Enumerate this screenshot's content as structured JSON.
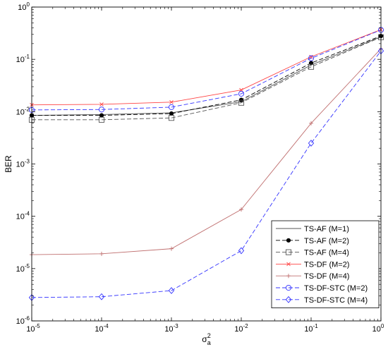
{
  "chart_data": {
    "type": "line",
    "xscale": "log",
    "yscale": "log",
    "xlim": [
      1e-05,
      1
    ],
    "ylim": [
      1e-06,
      1
    ],
    "x_ticks": [
      1e-05,
      0.0001,
      0.001,
      0.01,
      0.1,
      1
    ],
    "x_tick_labels": [
      {
        "base": "10",
        "exp": "-5"
      },
      {
        "base": "10",
        "exp": "-4"
      },
      {
        "base": "10",
        "exp": "-3"
      },
      {
        "base": "10",
        "exp": "-2"
      },
      {
        "base": "10",
        "exp": "-1"
      },
      {
        "base": "10",
        "exp": "0"
      }
    ],
    "y_ticks": [
      1e-06,
      1e-05,
      0.0001,
      0.001,
      0.01,
      0.1,
      1
    ],
    "y_tick_labels": [
      {
        "base": "10",
        "exp": "-6"
      },
      {
        "base": "10",
        "exp": "-5"
      },
      {
        "base": "10",
        "exp": "-4"
      },
      {
        "base": "10",
        "exp": "-3"
      },
      {
        "base": "10",
        "exp": "-2"
      },
      {
        "base": "10",
        "exp": "-1"
      },
      {
        "base": "10",
        "exp": "0"
      }
    ],
    "xlabel": {
      "base": "σ",
      "sub": "a",
      "sup": "2"
    },
    "ylabel": "BER",
    "grid": false,
    "legend_position": "bottom-right",
    "x": [
      1e-05,
      0.0001,
      0.001,
      0.01,
      0.1,
      1
    ],
    "series": [
      {
        "name": "TS-AF (M=1)",
        "color": "#555555",
        "dash": "solid",
        "marker": "none",
        "values": [
          0.0085,
          0.0088,
          0.0095,
          0.0155,
          0.078,
          0.27
        ]
      },
      {
        "name": "TS-AF (M=2)",
        "color": "#000000",
        "dash": "dashed",
        "marker": "filled-circle",
        "values": [
          0.0085,
          0.0085,
          0.0092,
          0.0168,
          0.085,
          0.28
        ]
      },
      {
        "name": "TS-AF (M=4)",
        "color": "#555555",
        "dash": "dashed",
        "marker": "square",
        "values": [
          0.007,
          0.007,
          0.0076,
          0.0148,
          0.072,
          0.265
        ]
      },
      {
        "name": "TS-DF (M=2)",
        "color": "#ff4444",
        "dash": "solid",
        "marker": "cross",
        "values": [
          0.0135,
          0.0138,
          0.0152,
          0.026,
          0.112,
          0.37
        ]
      },
      {
        "name": "TS-DF (M=4)",
        "color": "#c07070",
        "dash": "solid",
        "marker": "plus",
        "values": [
          1.85e-05,
          1.92e-05,
          2.4e-05,
          0.000135,
          0.006,
          0.16
        ]
      },
      {
        "name": "TS-DF-STC (M=2)",
        "color": "#3333ff",
        "dash": "dashed",
        "marker": "circle",
        "values": [
          0.0108,
          0.011,
          0.0122,
          0.022,
          0.105,
          0.365
        ]
      },
      {
        "name": "TS-DF-STC (M=4)",
        "color": "#3333ff",
        "dash": "dashed",
        "marker": "diamond",
        "values": [
          2.8e-06,
          2.9e-06,
          3.8e-06,
          2.2e-05,
          0.0025,
          0.145
        ]
      }
    ]
  }
}
